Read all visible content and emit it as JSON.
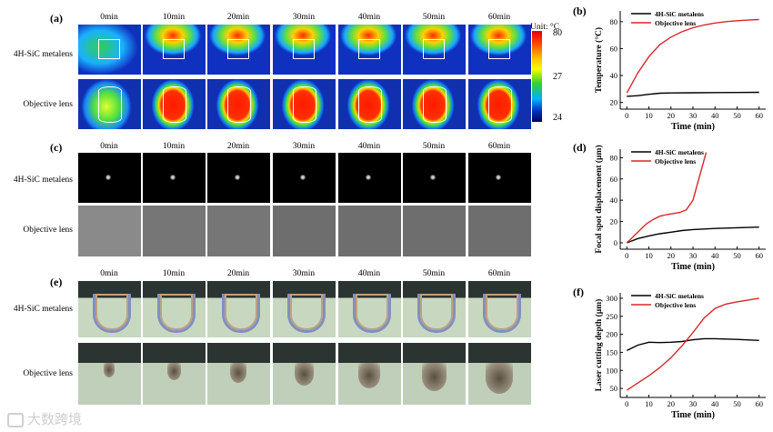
{
  "panels": {
    "a": {
      "label": "(a)"
    },
    "c": {
      "label": "(c)"
    },
    "e": {
      "label": "(e)"
    },
    "b": {
      "label": "(b)"
    },
    "d": {
      "label": "(d)"
    },
    "f": {
      "label": "(f)"
    }
  },
  "time_labels": [
    "0min",
    "10min",
    "20min",
    "30min",
    "40min",
    "50min",
    "60min"
  ],
  "row_labels": {
    "metalens": "4H-SiC metalens",
    "objective": "Objective lens"
  },
  "colorbar": {
    "unit": "Unit: °C",
    "max": "80",
    "mid": "27",
    "min": "24"
  },
  "watermark": "大数跨境",
  "chart_data": [
    {
      "id": "b",
      "type": "line",
      "xlabel": "Time (min)",
      "ylabel": "Temperature (°C)",
      "xlim": [
        -3,
        63
      ],
      "ylim": [
        15,
        88
      ],
      "xticks": [
        0,
        10,
        20,
        30,
        40,
        50,
        60
      ],
      "yticks": [
        20,
        40,
        60,
        80
      ],
      "legend": "top-left",
      "series": [
        {
          "name": "4H-SiC metalens",
          "color": "#000000",
          "x": [
            0,
            5,
            10,
            15,
            20,
            30,
            40,
            50,
            60
          ],
          "y": [
            24.5,
            25,
            26,
            26.8,
            27,
            27.2,
            27.3,
            27.4,
            27.5
          ]
        },
        {
          "name": "Objective lens",
          "color": "#d62728",
          "x": [
            0,
            5,
            10,
            15,
            20,
            25,
            30,
            35,
            40,
            45,
            50,
            55,
            60
          ],
          "y": [
            27,
            42,
            54,
            63,
            68.5,
            72.5,
            75.5,
            77.5,
            79,
            80,
            80.7,
            81.2,
            81.6
          ]
        }
      ]
    },
    {
      "id": "d",
      "type": "line",
      "xlabel": "Time (min)",
      "ylabel": "Focal spot displacement (µm)",
      "xlim": [
        -3,
        63
      ],
      "ylim": [
        -6,
        88
      ],
      "xticks": [
        0,
        10,
        20,
        30,
        40,
        50,
        60
      ],
      "yticks": [
        0,
        20,
        40,
        60,
        80
      ],
      "legend": "top-left",
      "series": [
        {
          "name": "4H-SiC metalens",
          "color": "#000000",
          "x": [
            0,
            5,
            10,
            15,
            20,
            25,
            30,
            40,
            50,
            60
          ],
          "y": [
            0,
            4,
            6.5,
            8.5,
            10,
            11.5,
            12.5,
            13.5,
            14.2,
            14.8
          ]
        },
        {
          "name": "Objective lens",
          "color": "#d62728",
          "x": [
            0,
            3,
            6,
            9,
            12,
            15,
            18,
            21,
            24,
            27,
            30,
            32,
            34,
            36
          ],
          "y": [
            0,
            6,
            12,
            18,
            22,
            25,
            26.5,
            27.5,
            28.5,
            31,
            40,
            55,
            70,
            85
          ]
        }
      ]
    },
    {
      "id": "f",
      "type": "line",
      "xlabel": "Time (min)",
      "ylabel": "Laser cutting depth (µm)",
      "xlim": [
        -3,
        63
      ],
      "ylim": [
        25,
        315
      ],
      "xticks": [
        0,
        10,
        20,
        30,
        40,
        50,
        60
      ],
      "yticks": [
        50,
        100,
        150,
        200,
        250,
        300
      ],
      "legend": "top-left",
      "series": [
        {
          "name": "4H-SiC metalens",
          "color": "#000000",
          "x": [
            0,
            5,
            10,
            15,
            20,
            25,
            30,
            35,
            40,
            50,
            60
          ],
          "y": [
            155,
            170,
            178,
            177,
            178,
            180,
            185,
            188,
            188,
            186,
            183
          ]
        },
        {
          "name": "Objective lens",
          "color": "#d62728",
          "x": [
            0,
            5,
            10,
            15,
            20,
            25,
            30,
            35,
            40,
            45,
            50,
            55,
            60
          ],
          "y": [
            45,
            65,
            85,
            108,
            135,
            168,
            205,
            245,
            272,
            284,
            290,
            295,
            300
          ]
        }
      ]
    }
  ]
}
